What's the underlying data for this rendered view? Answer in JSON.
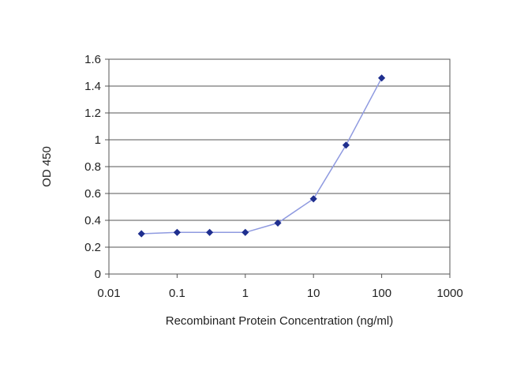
{
  "chart_data": {
    "type": "line",
    "title": "",
    "xlabel": "Recombinant Protein Concentration (ng/ml)",
    "ylabel": "OD 450",
    "x_scale": "log",
    "xlim": [
      0.01,
      1000
    ],
    "ylim": [
      0,
      1.6
    ],
    "x_ticks": [
      "0.01",
      "0.1",
      "1",
      "10",
      "100",
      "1000"
    ],
    "y_ticks": [
      "0",
      "0.2",
      "0.4",
      "0.6",
      "0.8",
      "1",
      "1.2",
      "1.4",
      "1.6"
    ],
    "grid": "horizontal",
    "legend": "none",
    "series": [
      {
        "x": [
          0.03,
          0.1,
          0.3,
          1,
          3,
          10,
          30,
          100
        ],
        "y": [
          0.3,
          0.31,
          0.31,
          0.31,
          0.38,
          0.56,
          0.96,
          1.46
        ],
        "color": "#1f2f8f",
        "line_color": "#8f9ae0"
      }
    ]
  }
}
